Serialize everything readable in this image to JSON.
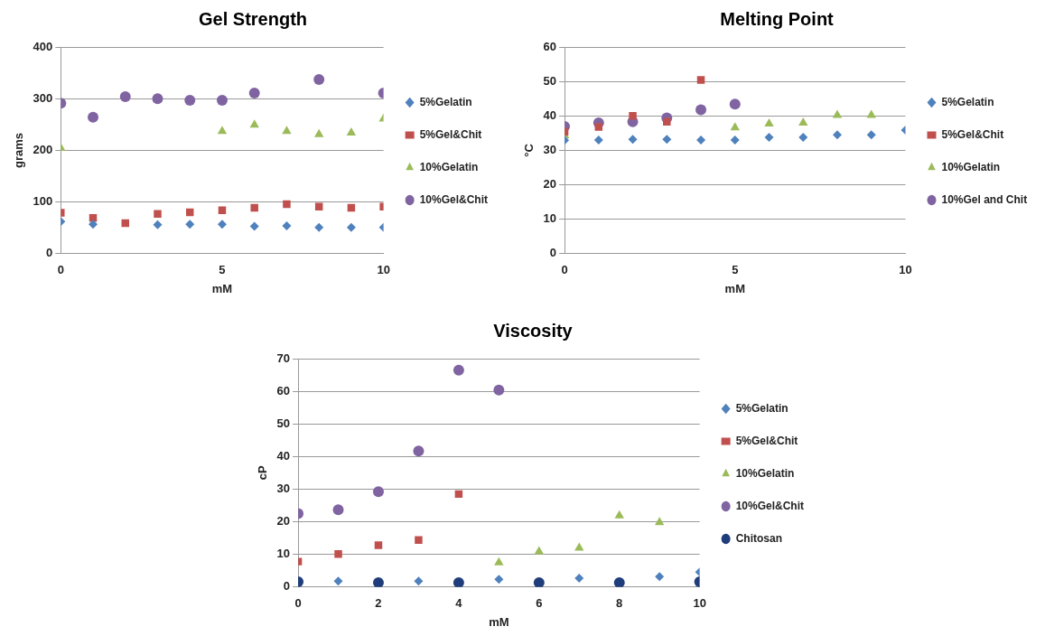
{
  "chart_data": [
    {
      "type": "scatter",
      "title": "Gel Strength",
      "xlabel": "mM",
      "ylabel": "grams",
      "x": [
        0,
        1,
        2,
        3,
        4,
        5,
        6,
        7,
        8,
        9,
        10
      ],
      "xlim": [
        0,
        10
      ],
      "xticks": [
        0,
        5,
        10
      ],
      "ylim": [
        0,
        400
      ],
      "yticks": [
        0,
        100,
        200,
        300,
        400
      ],
      "grid": "y",
      "legend": "right",
      "series": [
        {
          "name": "5%Gelatin",
          "color": "#4f81bd",
          "marker": "diamond",
          "values": [
            62,
            57,
            null,
            56,
            57,
            57,
            53,
            54,
            51,
            51,
            51
          ]
        },
        {
          "name": "5%Gel&Chit",
          "color": "#c0504d",
          "marker": "square",
          "values": [
            79,
            69,
            59,
            77,
            80,
            84,
            89,
            96,
            91,
            89,
            91
          ]
        },
        {
          "name": "10%Gelatin",
          "color": "#9bbb59",
          "marker": "triangle",
          "values": [
            204,
            null,
            null,
            null,
            null,
            237,
            249,
            237,
            231,
            234,
            261
          ]
        },
        {
          "name": "10%Gel&Chit",
          "color": "#8064a2",
          "marker": "circle",
          "values": [
            291,
            264,
            304,
            300,
            297,
            297,
            311,
            null,
            337,
            null,
            311
          ]
        }
      ]
    },
    {
      "type": "scatter",
      "title": "Melting Point",
      "xlabel": "mM",
      "ylabel": "°C",
      "x": [
        0,
        1,
        2,
        3,
        4,
        5,
        6,
        7,
        8,
        9,
        10
      ],
      "xlim": [
        0,
        10
      ],
      "xticks": [
        0,
        5,
        10
      ],
      "ylim": [
        0,
        60
      ],
      "yticks": [
        0,
        10,
        20,
        30,
        40,
        50,
        60
      ],
      "grid": "y",
      "legend": "right",
      "series": [
        {
          "name": "5%Gelatin",
          "color": "#4f81bd",
          "marker": "diamond",
          "values": [
            32.9,
            33,
            33.2,
            33.2,
            33,
            33,
            33.8,
            33.8,
            34.5,
            34.5,
            35.9
          ]
        },
        {
          "name": "5%Gel&Chit",
          "color": "#c0504d",
          "marker": "square",
          "values": [
            35.4,
            36.8,
            40,
            38.3,
            50.4,
            null,
            null,
            null,
            null,
            null,
            null
          ]
        },
        {
          "name": "10%Gelatin",
          "color": "#9bbb59",
          "marker": "triangle",
          "values": [
            34.3,
            null,
            null,
            null,
            null,
            36.6,
            37.7,
            38,
            40.2,
            40.2,
            null
          ]
        },
        {
          "name": "10%Gel and Chit",
          "color": "#8064a2",
          "marker": "circle",
          "values": [
            36.9,
            38,
            38.3,
            39.4,
            41.8,
            43.4,
            null,
            null,
            null,
            null,
            null
          ]
        }
      ]
    },
    {
      "type": "scatter",
      "title": "Viscosity",
      "xlabel": "mM",
      "ylabel": "cP",
      "x": [
        0,
        1,
        2,
        3,
        4,
        5,
        6,
        7,
        8,
        9,
        10
      ],
      "xlim": [
        0,
        10
      ],
      "xticks": [
        0,
        2,
        4,
        6,
        8,
        10
      ],
      "ylim": [
        0,
        70
      ],
      "yticks": [
        0,
        10,
        20,
        30,
        40,
        50,
        60,
        70
      ],
      "grid": "y",
      "legend": "right",
      "series": [
        {
          "name": "5%Gelatin",
          "color": "#4f81bd",
          "marker": "diamond",
          "values": [
            null,
            1.8,
            null,
            1.8,
            null,
            2.4,
            null,
            2.7,
            null,
            3.2,
            4.6
          ]
        },
        {
          "name": "5%Gel&Chit",
          "color": "#c0504d",
          "marker": "square",
          "values": [
            7.8,
            10.1,
            12.8,
            14.4,
            28.5,
            null,
            null,
            null,
            null,
            null,
            null
          ]
        },
        {
          "name": "10%Gelatin",
          "color": "#9bbb59",
          "marker": "triangle",
          "values": [
            null,
            null,
            null,
            null,
            null,
            7.5,
            10.9,
            12,
            21.9,
            19.8,
            null
          ]
        },
        {
          "name": "10%Gel&Chit",
          "color": "#8064a2",
          "marker": "circle",
          "values": [
            22.5,
            23.7,
            29.2,
            41.7,
            66.5,
            60.4,
            null,
            null,
            null,
            null,
            null
          ]
        },
        {
          "name": "Chitosan",
          "color": "#1f3d7a",
          "marker": "circle",
          "values": [
            1.6,
            null,
            1.3,
            null,
            1.3,
            null,
            1.3,
            null,
            1.3,
            null,
            1.6
          ]
        }
      ]
    }
  ]
}
